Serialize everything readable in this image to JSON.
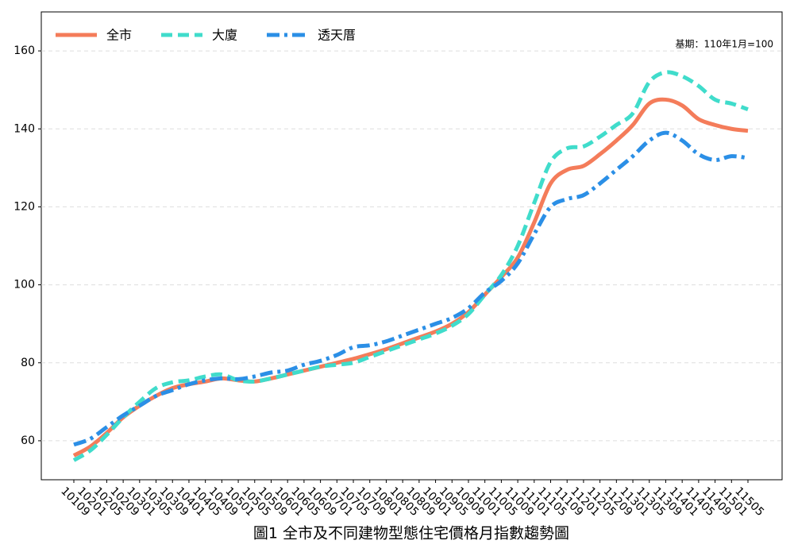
{
  "chart_data": {
    "type": "line",
    "caption": "圖1 全市及不同建物型態住宅價格月指數趨勢圖",
    "annotation": "基期：110年1月=100",
    "categories": [
      "10109",
      "10201",
      "10205",
      "10209",
      "10301",
      "10305",
      "10309",
      "10401",
      "10405",
      "10409",
      "10501",
      "10505",
      "10509",
      "10601",
      "10605",
      "10609",
      "10701",
      "10705",
      "10709",
      "10801",
      "10805",
      "10809",
      "10901",
      "10905",
      "10909",
      "11001",
      "11005",
      "11009",
      "11101",
      "11105",
      "11109",
      "11201",
      "11205",
      "11209",
      "11301",
      "11305",
      "11309",
      "11401",
      "11405",
      "11409",
      "11501",
      "11505"
    ],
    "series": [
      {
        "name": "全市",
        "color": "#f47c5a",
        "dash": "solid",
        "values": [
          56.2,
          58.5,
          62,
          66,
          69,
          71.5,
          73.5,
          74.5,
          75.2,
          76,
          75.5,
          75.2,
          76,
          77,
          78,
          79,
          80,
          81,
          82.2,
          83.5,
          85,
          86.5,
          88,
          90,
          93,
          97.5,
          102,
          107,
          116,
          126,
          129.5,
          130.5,
          133.5,
          137,
          141,
          146.5,
          147.5,
          146,
          142.5,
          141,
          140,
          139.5
        ]
      },
      {
        "name": "大廈",
        "color": "#40dccb",
        "dash": "dashed",
        "values": [
          55,
          57.5,
          61.5,
          66,
          70,
          73.5,
          75,
          75.5,
          76.5,
          77,
          75.5,
          75.2,
          76,
          77,
          78,
          79,
          79.5,
          80,
          81.5,
          83,
          84.5,
          86,
          87.5,
          89.5,
          92.5,
          97.5,
          102.5,
          110,
          121,
          131.5,
          135,
          135.5,
          138,
          141,
          144,
          152,
          154.5,
          153.5,
          151,
          147.5,
          146.5,
          145
        ]
      },
      {
        "name": "透天厝",
        "color": "#2b8fe6",
        "dash": "dashdot",
        "values": [
          59,
          60.5,
          63.5,
          66.5,
          69,
          71.5,
          73,
          74.5,
          75.5,
          76,
          75.8,
          76.5,
          77.5,
          78,
          79.5,
          80.5,
          82,
          84,
          84.5,
          85.5,
          87,
          88.5,
          90,
          91.5,
          94,
          98,
          101,
          105.5,
          113,
          120,
          122,
          123,
          126,
          129.5,
          133,
          137,
          139,
          137,
          133.5,
          132,
          133,
          132.5
        ]
      }
    ],
    "ylim": [
      50,
      170
    ],
    "yticks": [
      60,
      80,
      100,
      120,
      140,
      160
    ],
    "grid": true,
    "legend": "upper-left"
  }
}
